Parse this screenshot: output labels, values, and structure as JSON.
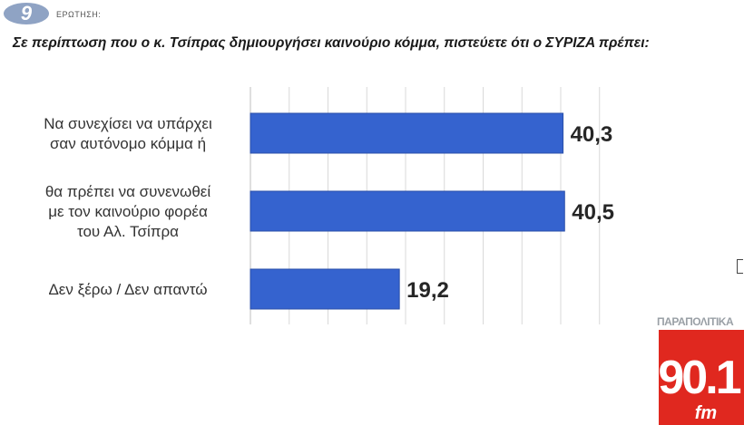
{
  "header": {
    "question_number": "9",
    "question_word": "ΕΡΩΤΗΣΗ:",
    "question_text": "Σε περίπτωση που ο κ. Τσίπρας δημιουργήσει καινούριο κόμμα, πιστεύετε ότι ο ΣΥΡΙΖΑ πρέπει:"
  },
  "colors": {
    "bar": "#3563cf",
    "bar_edge": "#2a4fa8",
    "number_badge": "#8fa3c4",
    "logo_red": "#e0281f"
  },
  "logo": {
    "name": "ΠΑΡΑΠΟΛΙΤΙΚΑ",
    "number": "90.1",
    "suffix": "fm"
  },
  "chart_data": {
    "type": "bar",
    "orientation": "horizontal",
    "categories": [
      [
        "Να συνεχίσει να υπάρχει",
        "σαν αυτόνομο κόμμα ή"
      ],
      [
        "θα πρέπει να συνενωθεί",
        "με τον καινούριο φορέα",
        "του Αλ. Τσίπρα"
      ],
      [
        "Δεν ξέρω / Δεν απαντώ"
      ]
    ],
    "values": [
      40.3,
      40.5,
      19.2
    ],
    "value_labels": [
      "40,3",
      "40,5",
      "19,2"
    ],
    "xlim": [
      0,
      45
    ],
    "grid": true
  }
}
